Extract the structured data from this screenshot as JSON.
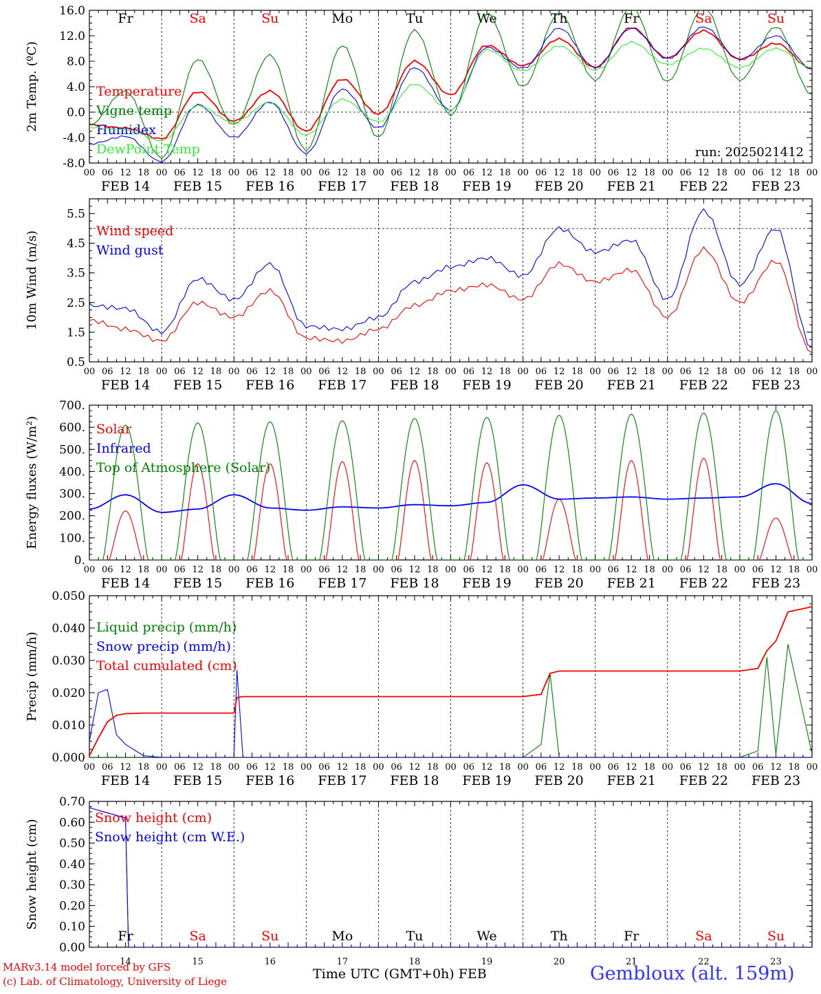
{
  "meta": {
    "run_label": "run: 2025021412",
    "station": "Gembloux (alt. 159m)",
    "credit_line1": "MARv3.14 model forced by GFS",
    "credit_line2": "(c) Lab. of Climatology, University of Liege",
    "time_axis_title": "Time UTC (GMT+0h)",
    "month_label": "FEB"
  },
  "colors": {
    "red": "#ff0000",
    "green": "#008000",
    "blue": "#0000ff",
    "lightgreen": "#33ee33"
  },
  "time_axis": {
    "hour_ticks": [
      "00",
      "06",
      "12",
      "18"
    ],
    "end_tick": "00",
    "date_labels": [
      "FEB 14",
      "FEB 15",
      "FEB 16",
      "FEB 17",
      "FEB 18",
      "FEB 19",
      "FEB 20",
      "FEB 21",
      "FEB 22",
      "FEB 23"
    ],
    "weekdays": [
      "Fr",
      "Sa",
      "Su",
      "Mo",
      "Tu",
      "We",
      "Th",
      "Fr",
      "Sa",
      "Su"
    ],
    "weekday_colors": [
      "#000000",
      "#ff0000",
      "#ff0000",
      "#000000",
      "#000000",
      "#000000",
      "#000000",
      "#000000",
      "#ff0000",
      "#ff0000"
    ],
    "day_numbers": [
      "14",
      "15",
      "16",
      "17",
      "18",
      "19",
      "20",
      "21",
      "22",
      "23"
    ]
  },
  "chart_data": [
    {
      "type": "line",
      "id": "temp",
      "ylabel": "2m Temp. (ºC)",
      "ylim": [
        -8,
        16
      ],
      "yticks": [
        "-8.0",
        "-4.0",
        "0.0",
        "4.0",
        "8.0",
        "12.0",
        "16.0"
      ],
      "ref_line": 0,
      "x_hours": [
        0,
        12,
        24,
        36,
        48,
        60,
        72,
        84,
        96,
        108,
        120,
        132,
        144,
        156,
        168,
        180,
        192,
        204,
        216,
        228,
        240
      ],
      "series": [
        {
          "name": "Temperature",
          "color": "#ff0000",
          "values": [
            -2,
            -2.5,
            -4.2,
            3.2,
            -1.4,
            3.3,
            -3.0,
            5.2,
            -0.3,
            8.0,
            2.7,
            10.5,
            7.3,
            11.5,
            7.0,
            13.3,
            8.5,
            12.8,
            8.3,
            10.8,
            6.8
          ]
        },
        {
          "name": "Vigne temp",
          "color": "#008000",
          "values": [
            -2,
            3.3,
            -7.2,
            8.3,
            -2.0,
            9.0,
            -6.0,
            10.5,
            -4.0,
            12.9,
            -0.5,
            15.5,
            4.0,
            15.5,
            5.0,
            16.5,
            4.8,
            16.5,
            5.0,
            13.4,
            2.8
          ]
        },
        {
          "name": "Humidex",
          "color": "#0000ff",
          "values": [
            -5,
            -3.8,
            -7.8,
            1.2,
            -4.0,
            1.6,
            -6.5,
            3.6,
            -2.5,
            7.0,
            0.3,
            10.2,
            6.9,
            13.2,
            7.0,
            13.2,
            8.4,
            13.4,
            8.3,
            12.0,
            6.8
          ]
        },
        {
          "name": "DewPoint Temp",
          "color": "#33ee33",
          "values": [
            -2.4,
            -2.8,
            -4.5,
            1.0,
            -1.6,
            1.5,
            -3.6,
            2.0,
            -1.5,
            4.4,
            0.3,
            9.8,
            6.5,
            10.4,
            6.6,
            11.0,
            7.5,
            10.0,
            7.0,
            10.0,
            7.0
          ]
        }
      ]
    },
    {
      "type": "line",
      "id": "wind",
      "ylabel": "10m Wind (m/s)",
      "ylim": [
        0.5,
        6
      ],
      "yticks": [
        "0.5",
        "1.5",
        "2.5",
        "3.5",
        "4.5",
        "5.5"
      ],
      "ref_line": 5,
      "x_hours": [
        0,
        12,
        24,
        36,
        48,
        60,
        72,
        84,
        96,
        108,
        120,
        132,
        144,
        156,
        168,
        180,
        192,
        204,
        216,
        228,
        240
      ],
      "series": [
        {
          "name": "Wind speed",
          "color": "#ff0000",
          "values": [
            1.9,
            1.6,
            1.2,
            2.5,
            2.0,
            2.9,
            1.3,
            1.2,
            1.6,
            2.4,
            2.9,
            3.1,
            2.6,
            3.8,
            3.2,
            3.6,
            2.0,
            4.3,
            2.5,
            3.9,
            0.8
          ]
        },
        {
          "name": "Wind gust",
          "color": "#0000ff",
          "values": [
            2.4,
            2.3,
            1.5,
            3.3,
            2.6,
            3.8,
            1.7,
            1.6,
            2.0,
            3.2,
            3.7,
            4.0,
            3.4,
            5.0,
            4.2,
            4.6,
            2.6,
            5.6,
            3.1,
            5.0,
            1.0
          ]
        }
      ]
    },
    {
      "type": "line",
      "id": "energy",
      "ylabel": "Energy fluxes (W/m²)",
      "ylim": [
        0,
        700
      ],
      "yticks": [
        "0.",
        "100.",
        "200.",
        "300.",
        "400.",
        "500.",
        "600.",
        "700."
      ],
      "ref_line": null,
      "x_hours": [
        0,
        12,
        24,
        36,
        48,
        60,
        72,
        84,
        96,
        108,
        120,
        132,
        144,
        156,
        168,
        180,
        192,
        204,
        216,
        228,
        240
      ],
      "solar_peaks": [
        222,
        435,
        435,
        445,
        450,
        440,
        275,
        450,
        460,
        190
      ],
      "toa_peaks": [
        610,
        620,
        625,
        630,
        640,
        645,
        655,
        660,
        665,
        675
      ],
      "series": [
        {
          "name": "Solar",
          "color": "#ff0000",
          "values": [
            0,
            222,
            0,
            435,
            0,
            435,
            0,
            445,
            0,
            450,
            0,
            440,
            0,
            275,
            0,
            450,
            0,
            460,
            0,
            190,
            0
          ]
        },
        {
          "name": "Infrared",
          "color": "#0000ff",
          "values": [
            230,
            295,
            215,
            230,
            295,
            235,
            225,
            240,
            235,
            250,
            245,
            260,
            340,
            275,
            280,
            285,
            275,
            280,
            285,
            345,
            255
          ]
        },
        {
          "name": "Top of Atmosphere (Solar)",
          "color": "#008000",
          "values": [
            0,
            610,
            0,
            620,
            0,
            625,
            0,
            630,
            0,
            640,
            0,
            645,
            0,
            655,
            0,
            660,
            0,
            665,
            0,
            675,
            0
          ]
        }
      ]
    },
    {
      "type": "line",
      "id": "precip",
      "ylabel": "Precip (mm/h)",
      "ylim": [
        0,
        0.05
      ],
      "yticks": [
        "0.000",
        "0.010",
        "0.020",
        "0.030",
        "0.040",
        "0.050"
      ],
      "ref_line": null,
      "x_hours": [
        0,
        3,
        6,
        9,
        12,
        18,
        24,
        48,
        49,
        51,
        72,
        144,
        150,
        153,
        156,
        168,
        216,
        222,
        225,
        228,
        232,
        240
      ],
      "series": [
        {
          "name": "Liquid precip (mm/h)",
          "color": "#008000",
          "values": [
            0,
            0,
            0,
            0,
            0,
            0,
            0,
            0,
            0,
            0,
            0,
            0,
            0.004,
            0.026,
            0,
            0,
            0,
            0.002,
            0.031,
            0.001,
            0.035,
            0.001
          ]
        },
        {
          "name": "Snow precip (mm/h)",
          "color": "#0000ff",
          "values": [
            0.005,
            0.02,
            0.021,
            0.007,
            0.004,
            0.0005,
            0,
            0,
            0.027,
            0,
            0,
            0,
            0,
            0,
            0,
            0,
            0,
            0,
            0,
            0,
            0,
            0
          ]
        },
        {
          "name": "Total cumulated (cm)",
          "color": "#ff0000",
          "values": [
            0.0005,
            0.006,
            0.011,
            0.013,
            0.0135,
            0.0137,
            0.0137,
            0.0137,
            0.0185,
            0.0188,
            0.0188,
            0.0188,
            0.0195,
            0.026,
            0.0267,
            0.0267,
            0.0267,
            0.0275,
            0.033,
            0.036,
            0.045,
            0.0466
          ]
        }
      ]
    },
    {
      "type": "line",
      "id": "snow",
      "ylabel": "Snow height (cm)",
      "ylim": [
        0,
        0.7
      ],
      "yticks": [
        "0.00",
        "0.10",
        "0.20",
        "0.30",
        "0.40",
        "0.50",
        "0.60",
        "0.70"
      ],
      "ref_line": null,
      "x_hours": [
        0,
        6,
        12,
        13,
        240
      ],
      "series": [
        {
          "name": "Snow height (cm)",
          "color": "#ff0000",
          "values": [
            0.67,
            0.645,
            0.62,
            0,
            0
          ]
        },
        {
          "name": "Snow height (cm W.E.)",
          "color": "#0000ff",
          "values": [
            0.67,
            0.645,
            0.62,
            0,
            0
          ]
        }
      ]
    }
  ]
}
